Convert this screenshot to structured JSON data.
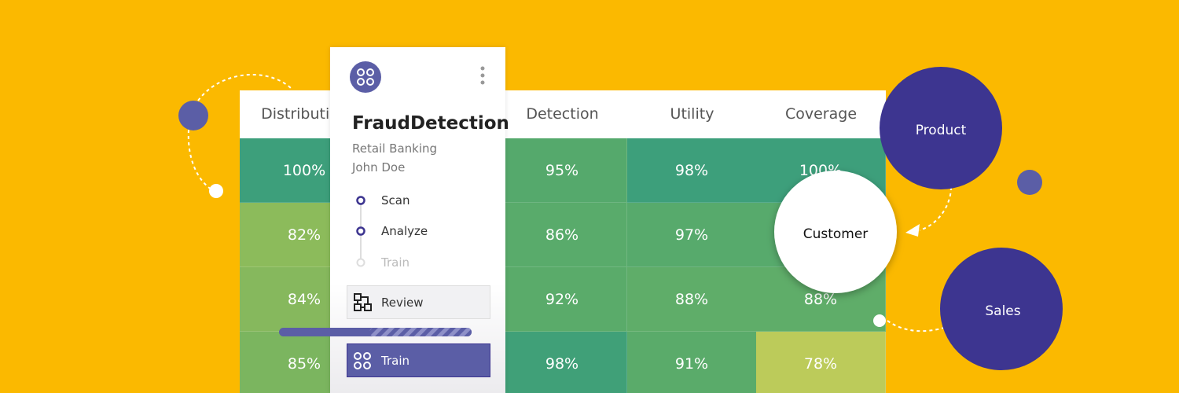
{
  "table": {
    "columns": [
      {
        "header": "Distribution",
        "cells": [
          {
            "text": "100%",
            "color": "#3d9f7b"
          },
          {
            "text": "82%",
            "color": "#8cbb5b"
          },
          {
            "text": "84%",
            "color": "#86b85d"
          },
          {
            "text": "85%",
            "color": "#7bb55f"
          }
        ]
      },
      {
        "header": "Detection",
        "cells": [
          {
            "text": "95%",
            "color": "#55a96c"
          },
          {
            "text": "86%",
            "color": "#59ab6b"
          },
          {
            "text": "92%",
            "color": "#5aab6a"
          },
          {
            "text": "98%",
            "color": "#40a078"
          }
        ]
      },
      {
        "header": "Utility",
        "cells": [
          {
            "text": "98%",
            "color": "#3d9f7b"
          },
          {
            "text": "97%",
            "color": "#57aa6c"
          },
          {
            "text": "88%",
            "color": "#5fad69"
          },
          {
            "text": "91%",
            "color": "#5aab6a"
          }
        ]
      },
      {
        "header": "Coverage",
        "cells": [
          {
            "text": "100%",
            "color": "#3d9f7b"
          },
          {
            "color": "#57aa6c"
          },
          {
            "text": "88%",
            "color": "#5fad69"
          },
          {
            "text": "78%",
            "color": "#bccb5a"
          }
        ]
      }
    ]
  },
  "card": {
    "title": "FraudDetection",
    "subtitle": "Retail Banking",
    "user": "John Doe",
    "steps": [
      "Scan",
      "Analyze",
      "Train"
    ],
    "buttons": [
      "Review",
      "Train"
    ]
  },
  "bubbles": [
    "Product",
    "Customer",
    "Sales"
  ]
}
